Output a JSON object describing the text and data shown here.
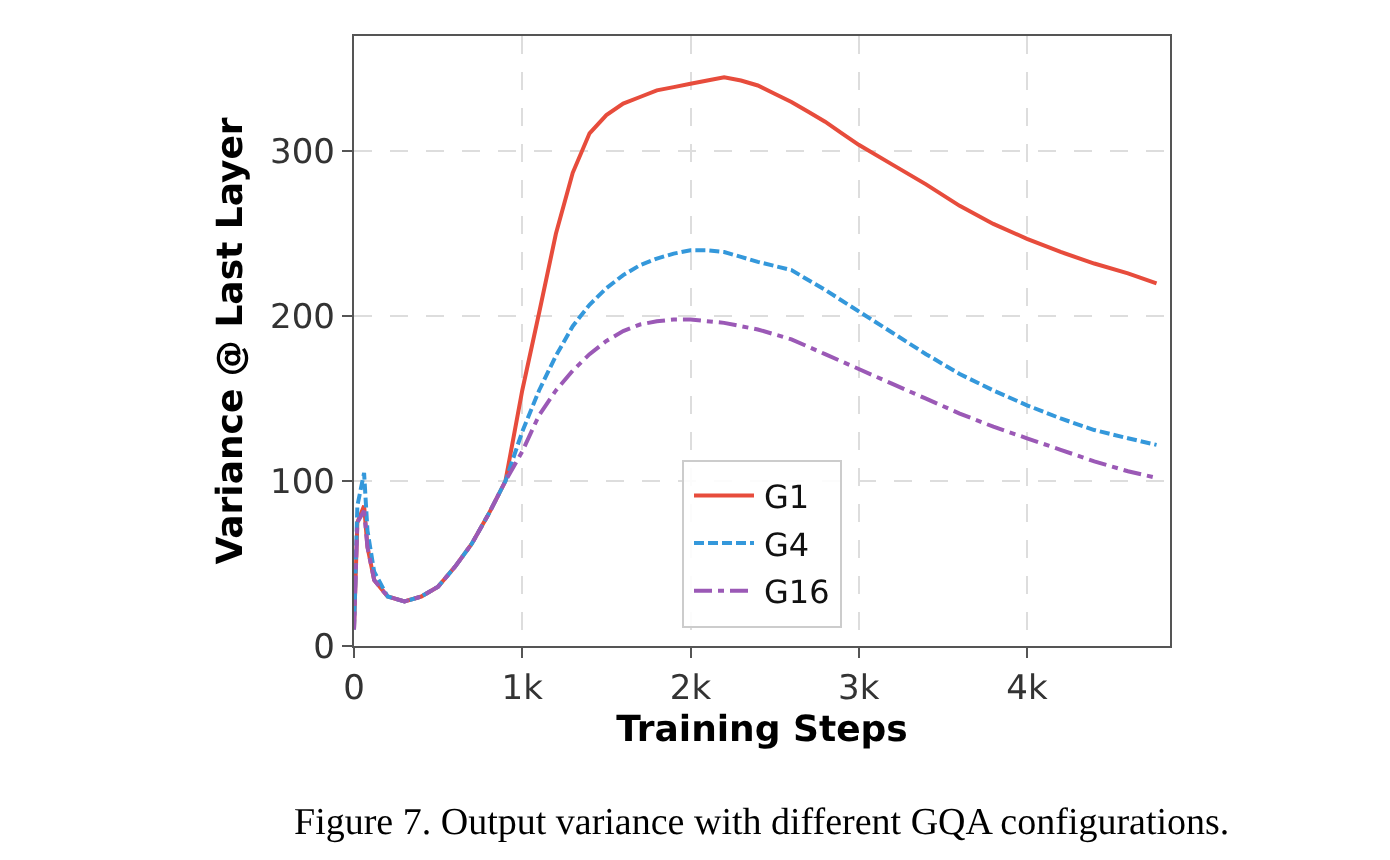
{
  "chart_data": {
    "type": "line",
    "xlabel": "Training Steps",
    "ylabel": "Variance @ Last Layer",
    "xlim": [
      0,
      4850
    ],
    "ylim": [
      0,
      370
    ],
    "xticks": [
      0,
      {
        "value": 1000,
        "label": "1k"
      },
      {
        "value": 2000,
        "label": "2k"
      },
      {
        "value": 3000,
        "label": "3k"
      },
      {
        "value": 4000,
        "label": "4k"
      }
    ],
    "yticks": [
      0,
      100,
      200,
      300
    ],
    "grid": true,
    "legend": "bottom",
    "marker": "none",
    "annotations": [
      "Figure 7. Output variance with different GQA configurations."
    ],
    "series": [
      {
        "name": "G1",
        "color": "#e74c3c",
        "line_style": "solid",
        "x": [
          0,
          20,
          60,
          80,
          120,
          200,
          300,
          400,
          500,
          600,
          700,
          800,
          900,
          1000,
          1100,
          1200,
          1300,
          1400,
          1500,
          1600,
          1700,
          1800,
          1900,
          2000,
          2100,
          2200,
          2300,
          2400,
          2500,
          2600,
          2700,
          2800,
          2900,
          3000,
          3200,
          3400,
          3600,
          3800,
          4000,
          4200,
          4400,
          4600,
          4770
        ],
        "values": [
          10,
          75,
          85,
          60,
          40,
          30,
          27,
          30,
          36,
          48,
          62,
          80,
          100,
          155,
          202,
          250,
          287,
          311,
          322,
          329,
          333,
          337,
          339,
          341,
          343,
          345,
          343,
          340,
          335,
          330,
          324,
          318,
          311,
          304,
          292,
          280,
          267,
          256,
          247,
          239,
          232,
          226,
          220
        ]
      },
      {
        "name": "G4",
        "color": "#3498db",
        "line_style": "dashed",
        "x": [
          0,
          20,
          60,
          80,
          120,
          200,
          300,
          400,
          500,
          600,
          700,
          800,
          900,
          1000,
          1100,
          1200,
          1300,
          1400,
          1500,
          1600,
          1700,
          1800,
          1900,
          2000,
          2100,
          2200,
          2300,
          2400,
          2600,
          2800,
          3000,
          3200,
          3400,
          3600,
          3800,
          4000,
          4200,
          4400,
          4600,
          4770
        ],
        "values": [
          10,
          85,
          105,
          70,
          45,
          30,
          27,
          30,
          36,
          48,
          62,
          80,
          100,
          130,
          155,
          176,
          194,
          207,
          217,
          225,
          231,
          235,
          238,
          240,
          240,
          239,
          236,
          233,
          228,
          216,
          203,
          190,
          177,
          165,
          155,
          146,
          138,
          131,
          126,
          122
        ]
      },
      {
        "name": "G16",
        "color": "#9b59b6",
        "line_style": "dashdot",
        "x": [
          0,
          20,
          60,
          80,
          120,
          200,
          300,
          400,
          500,
          600,
          700,
          800,
          900,
          1000,
          1100,
          1200,
          1300,
          1400,
          1500,
          1600,
          1700,
          1800,
          1900,
          2000,
          2200,
          2400,
          2600,
          2800,
          3000,
          3200,
          3400,
          3600,
          3800,
          4000,
          4200,
          4400,
          4600,
          4770
        ],
        "values": [
          10,
          75,
          82,
          60,
          40,
          30,
          27,
          30,
          36,
          48,
          62,
          80,
          100,
          118,
          140,
          155,
          167,
          177,
          185,
          191,
          195,
          197,
          198,
          198,
          196,
          192,
          186,
          177,
          168,
          159,
          150,
          141,
          133,
          126,
          119,
          112,
          106,
          102
        ]
      }
    ]
  }
}
